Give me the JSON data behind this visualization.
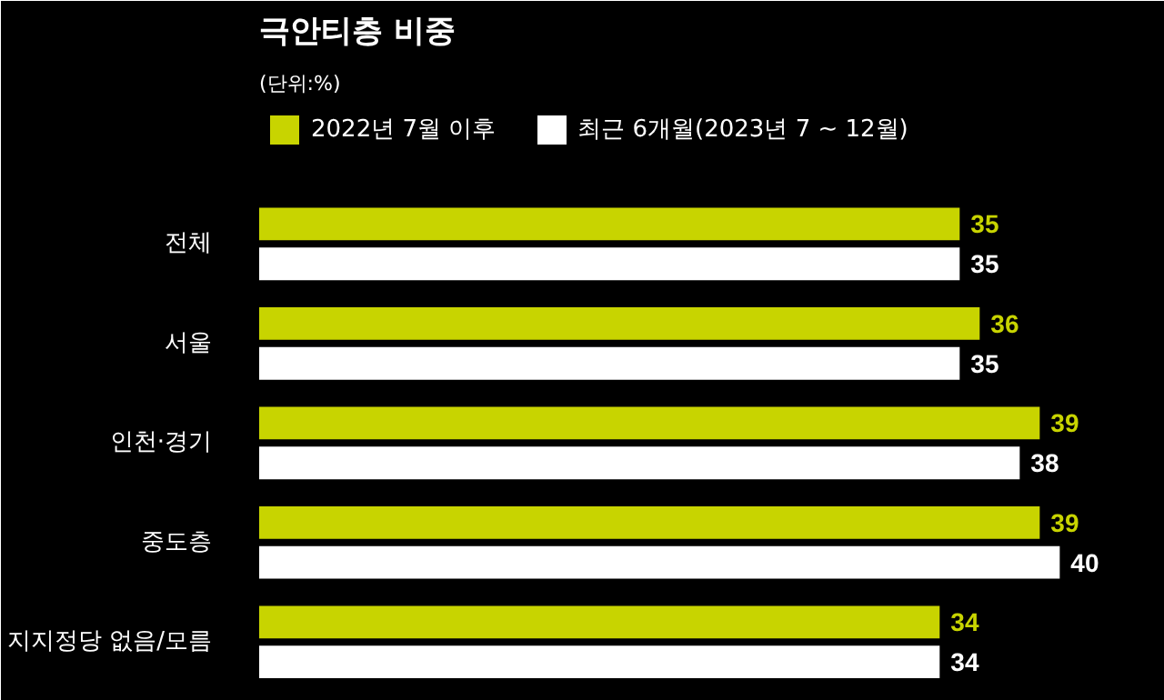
{
  "chart_data": {
    "type": "bar",
    "orientation": "horizontal",
    "title": "극안티층 비중",
    "subtitle": "(단위:%)",
    "categories": [
      "전체",
      "서울",
      "인천·경기",
      "중도층",
      "지지정당 없음/모름"
    ],
    "series": [
      {
        "name": "2022년 7월 이후",
        "color": "#c8d400",
        "values": [
          35,
          36,
          39,
          39,
          34
        ]
      },
      {
        "name": "최근 6개월(2023년 7 ~ 12월)",
        "color": "#ffffff",
        "values": [
          35,
          35,
          38,
          40,
          34
        ]
      }
    ],
    "data_labels": true,
    "legend": "top left"
  }
}
